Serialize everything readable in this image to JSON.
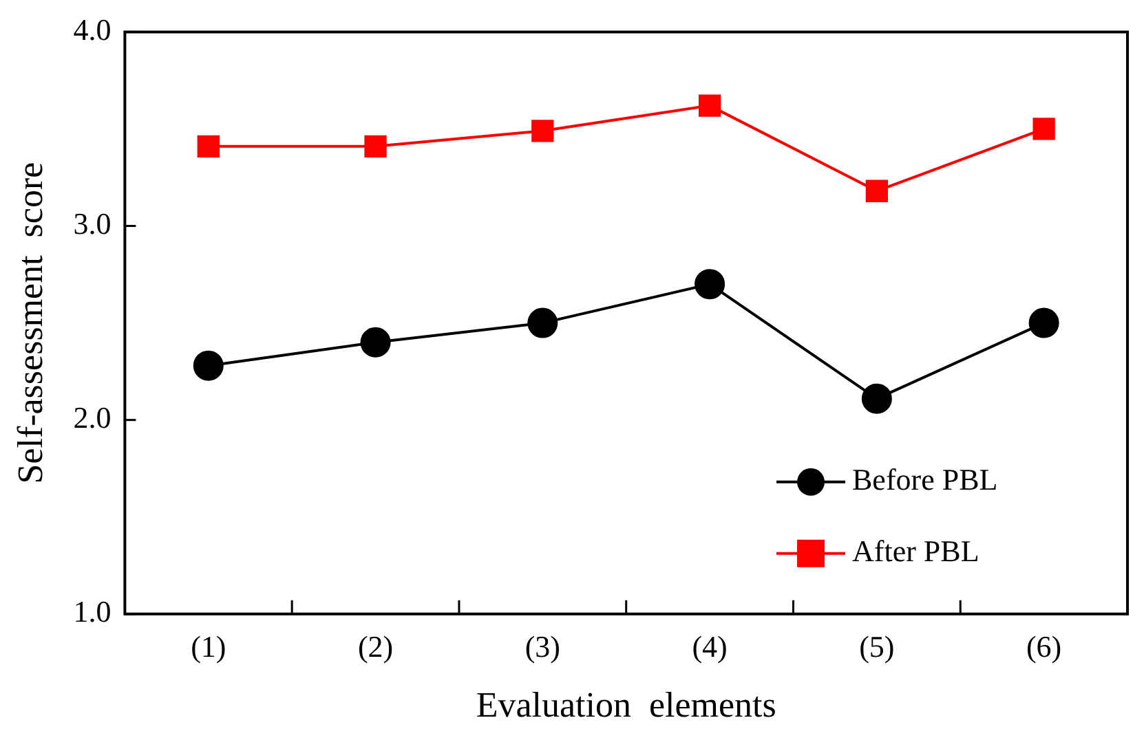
{
  "chart_data": {
    "type": "line",
    "xlabel": "Evaluation  elements",
    "ylabel": "Self-assessment  score",
    "categories": [
      "(1)",
      "(2)",
      "(3)",
      "(4)",
      "(5)",
      "(6)"
    ],
    "series": [
      {
        "name": "Before PBL",
        "color": "#000000",
        "marker": "circle",
        "values": [
          2.28,
          2.4,
          2.5,
          2.7,
          2.11,
          2.5
        ]
      },
      {
        "name": "After PBL",
        "color": "#ff0000",
        "marker": "square",
        "values": [
          3.41,
          3.41,
          3.49,
          3.62,
          3.18,
          3.5
        ]
      }
    ],
    "ylim": [
      1,
      4
    ],
    "yticks": [
      {
        "value": 1,
        "label": "1.0"
      },
      {
        "value": 2,
        "label": "2.0"
      },
      {
        "value": 3,
        "label": "3.0"
      },
      {
        "value": 4,
        "label": "4.0"
      }
    ],
    "grid": false,
    "legend": "bottom right",
    "line_style": "solid"
  }
}
